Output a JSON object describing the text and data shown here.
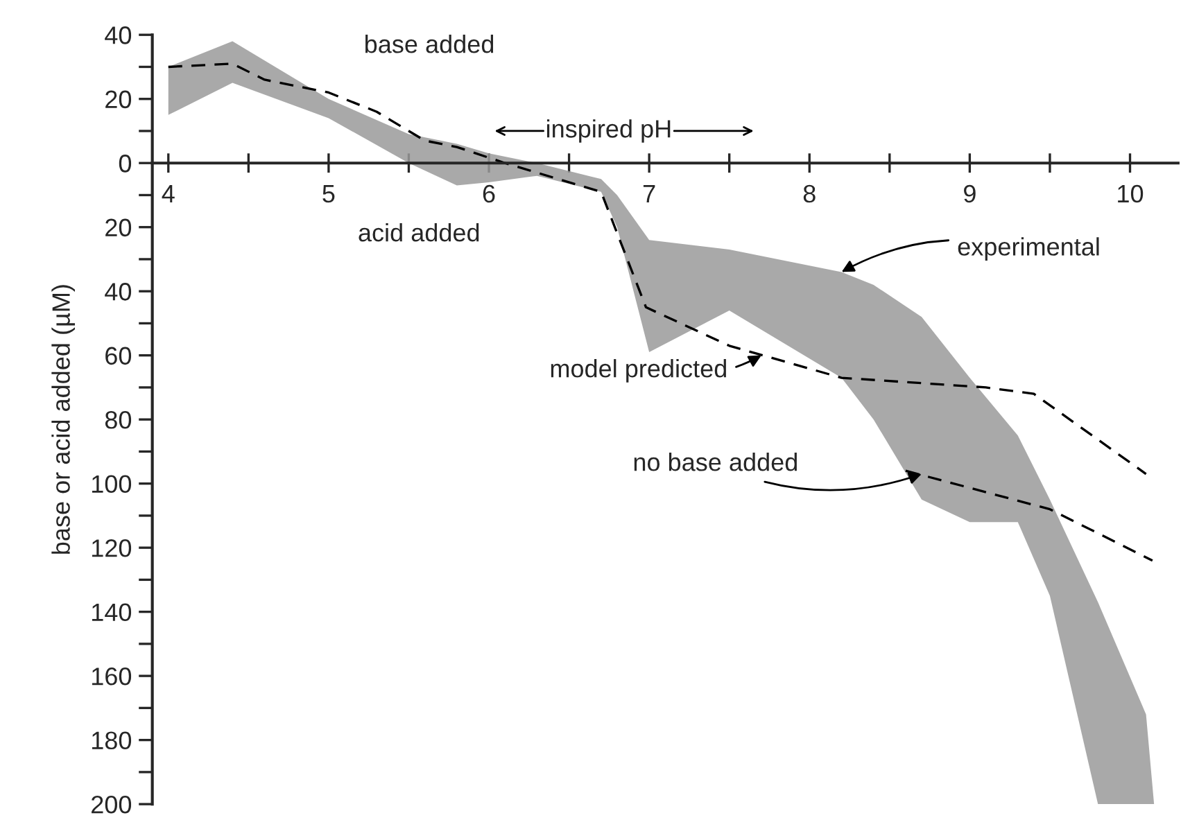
{
  "chart_data": {
    "type": "line",
    "xlabel": "inspired pH",
    "ylabel": "base or acid added (µM)",
    "xlim": [
      3.9,
      10.3
    ],
    "ylim": [
      -200,
      40
    ],
    "xticks": [
      4,
      {
        "value": 4.5,
        "label": null
      },
      5,
      {
        "value": 5.5,
        "label": null
      },
      6,
      {
        "value": 6.5,
        "label": null
      },
      7,
      {
        "value": 7.5,
        "label": null
      },
      8,
      {
        "value": 8.5,
        "label": null
      },
      9,
      {
        "value": 9.5,
        "label": null
      },
      10
    ],
    "yticks": [
      40,
      {
        "value": 30,
        "label": null
      },
      20,
      {
        "value": 10,
        "label": null
      },
      0,
      {
        "value": -10,
        "label": null
      },
      {
        "value": -20,
        "label": "20"
      },
      {
        "value": -30,
        "label": null
      },
      {
        "value": -40,
        "label": "40"
      },
      {
        "value": -50,
        "label": null
      },
      {
        "value": -60,
        "label": "60"
      },
      {
        "value": -70,
        "label": null
      },
      {
        "value": -80,
        "label": "80"
      },
      {
        "value": -90,
        "label": null
      },
      {
        "value": -100,
        "label": "100"
      },
      {
        "value": -110,
        "label": null
      },
      {
        "value": -120,
        "label": "120"
      },
      {
        "value": -130,
        "label": null
      },
      {
        "value": -140,
        "label": "140"
      },
      {
        "value": -150,
        "label": null
      },
      {
        "value": -160,
        "label": "160"
      },
      {
        "value": -170,
        "label": null
      },
      {
        "value": -180,
        "label": "180"
      },
      {
        "value": -190,
        "label": null
      },
      {
        "value": -200,
        "label": "200"
      }
    ],
    "grid": false,
    "legend": false,
    "series": [
      {
        "type": "area",
        "color": "#9a9a9a",
        "x": [
          4.0,
          4.4,
          5.0,
          5.5,
          5.8,
          6.0,
          6.3,
          6.7,
          6.8,
          7.0,
          7.5,
          8.2,
          8.4,
          8.7,
          9.0,
          9.3,
          9.5,
          9.8,
          10.1,
          10.15
        ],
        "values": [
          null,
          null,
          null,
          null,
          null,
          null,
          null,
          null,
          null,
          null,
          null,
          null,
          null,
          null,
          null,
          null,
          null,
          null,
          null,
          null
        ],
        "upper": [
          30,
          38,
          20,
          9,
          6,
          3,
          0,
          -5,
          -10,
          -24,
          -27,
          -34,
          -38,
          -48,
          -67,
          -85,
          -105,
          -137,
          -172,
          -200
        ],
        "lower": [
          15,
          25,
          14,
          0,
          -7,
          -6,
          -4,
          -9,
          -20,
          -59,
          -46,
          -67,
          -80,
          -105,
          -112,
          -112,
          -135,
          -200,
          -200,
          -200
        ]
      },
      {
        "color": "#000000",
        "line_style": "dashed",
        "x": [
          4.0,
          4.4,
          4.6,
          5.0,
          5.3,
          5.6,
          5.8,
          6.1,
          6.3,
          6.7,
          6.98,
          7.5,
          8.2,
          9.1,
          9.4,
          10.1
        ],
        "values": [
          30,
          31,
          26,
          22,
          16,
          7,
          5,
          0,
          -3,
          -9,
          -45,
          -57,
          -67,
          -70,
          -72,
          -97
        ]
      },
      {
        "color": "#000000",
        "line_style": "dashed",
        "x": [
          8.6,
          9.5,
          10.14
        ],
        "values": [
          -96,
          -108,
          -124
        ]
      }
    ],
    "annotations": [
      "base added",
      "acid added",
      {
        "text": "experimental",
        "x": 8.2,
        "y": -34
      },
      {
        "text": "model predicted",
        "x": 7.7,
        "y": -60
      },
      {
        "text": "no base added",
        "x": 8.7,
        "y": -97
      }
    ]
  }
}
